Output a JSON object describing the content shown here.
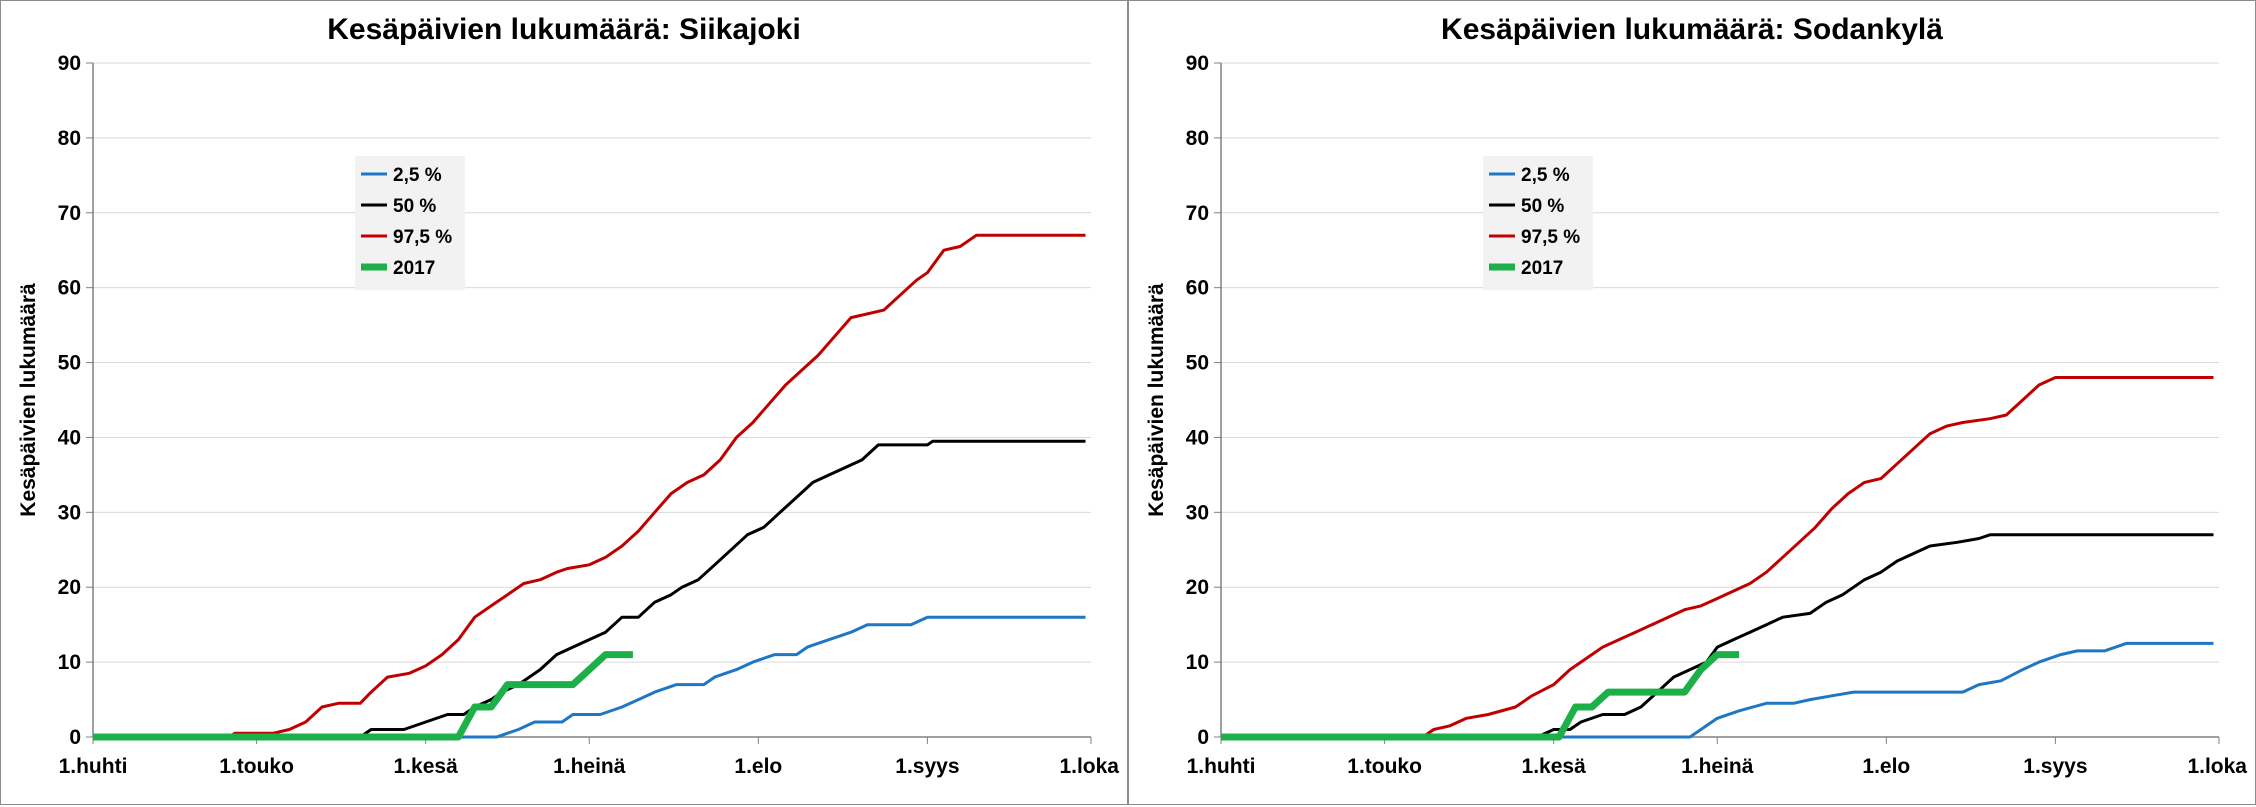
{
  "chart_data": [
    {
      "type": "line",
      "title": "Kesäpäivien lukumäärä: Siikajoki",
      "xlabel": "",
      "ylabel": "Kesäpäivien lukumäärä",
      "x_ticks": [
        "1.huhti",
        "1.touko",
        "1.kesä",
        "1.heinä",
        "1.elo",
        "1.syys",
        "1.loka"
      ],
      "x_tick_dates": [
        "04-01",
        "05-01",
        "06-01",
        "07-01",
        "08-01",
        "09-01",
        "10-01"
      ],
      "ylim": [
        0,
        90
      ],
      "yticks": [
        0,
        10,
        20,
        30,
        40,
        50,
        60,
        70,
        80,
        90
      ],
      "grid": true,
      "legend_position": "top-left",
      "series": [
        {
          "name": "2,5 %",
          "color": "#1f77c4",
          "width": 3,
          "points": [
            [
              "04-01",
              0
            ],
            [
              "06-14",
              0
            ],
            [
              "06-18",
              1
            ],
            [
              "06-21",
              2
            ],
            [
              "06-26",
              2
            ],
            [
              "06-28",
              3
            ],
            [
              "07-03",
              3
            ],
            [
              "07-07",
              4
            ],
            [
              "07-10",
              5
            ],
            [
              "07-13",
              6
            ],
            [
              "07-17",
              7
            ],
            [
              "07-22",
              7
            ],
            [
              "07-24",
              8
            ],
            [
              "07-28",
              9
            ],
            [
              "07-31",
              10
            ],
            [
              "08-04",
              11
            ],
            [
              "08-08",
              11
            ],
            [
              "08-10",
              12
            ],
            [
              "08-14",
              13
            ],
            [
              "08-18",
              14
            ],
            [
              "08-21",
              15
            ],
            [
              "08-26",
              15
            ],
            [
              "08-29",
              15
            ],
            [
              "09-01",
              16
            ],
            [
              "09-06",
              16
            ],
            [
              "09-10",
              16
            ],
            [
              "09-30",
              16
            ]
          ]
        },
        {
          "name": "50 %",
          "color": "#000000",
          "width": 3,
          "points": [
            [
              "04-01",
              0
            ],
            [
              "05-20",
              0
            ],
            [
              "05-22",
              1
            ],
            [
              "05-28",
              1
            ],
            [
              "06-01",
              2
            ],
            [
              "06-05",
              3
            ],
            [
              "06-08",
              3
            ],
            [
              "06-10",
              4
            ],
            [
              "06-13",
              5
            ],
            [
              "06-15",
              6
            ],
            [
              "06-18",
              7
            ],
            [
              "06-20",
              8
            ],
            [
              "06-22",
              9
            ],
            [
              "06-25",
              11
            ],
            [
              "06-28",
              12
            ],
            [
              "07-01",
              13
            ],
            [
              "07-04",
              14
            ],
            [
              "07-07",
              16
            ],
            [
              "07-10",
              16
            ],
            [
              "07-13",
              18
            ],
            [
              "07-16",
              19
            ],
            [
              "07-18",
              20
            ],
            [
              "07-21",
              21
            ],
            [
              "07-24",
              23
            ],
            [
              "07-27",
              25
            ],
            [
              "07-30",
              27
            ],
            [
              "08-02",
              28
            ],
            [
              "08-05",
              30
            ],
            [
              "08-08",
              32
            ],
            [
              "08-11",
              34
            ],
            [
              "08-14",
              35
            ],
            [
              "08-17",
              36
            ],
            [
              "08-20",
              37
            ],
            [
              "08-23",
              39
            ],
            [
              "09-01",
              39
            ],
            [
              "09-02",
              39.5
            ],
            [
              "09-30",
              39.5
            ]
          ]
        },
        {
          "name": "97,5 %",
          "color": "#c00000",
          "width": 3,
          "points": [
            [
              "04-01",
              0
            ],
            [
              "04-26",
              0
            ],
            [
              "04-27",
              0.5
            ],
            [
              "05-04",
              0.5
            ],
            [
              "05-07",
              1
            ],
            [
              "05-10",
              2
            ],
            [
              "05-13",
              4
            ],
            [
              "05-16",
              4.5
            ],
            [
              "05-20",
              4.5
            ],
            [
              "05-22",
              6
            ],
            [
              "05-25",
              8
            ],
            [
              "05-29",
              8.5
            ],
            [
              "06-01",
              9.5
            ],
            [
              "06-04",
              11
            ],
            [
              "06-07",
              13
            ],
            [
              "06-10",
              16
            ],
            [
              "06-13",
              17.5
            ],
            [
              "06-16",
              19
            ],
            [
              "06-19",
              20.5
            ],
            [
              "06-22",
              21
            ],
            [
              "06-25",
              22
            ],
            [
              "06-27",
              22.5
            ],
            [
              "07-01",
              23
            ],
            [
              "07-04",
              24
            ],
            [
              "07-07",
              25.5
            ],
            [
              "07-10",
              27.5
            ],
            [
              "07-13",
              30
            ],
            [
              "07-16",
              32.5
            ],
            [
              "07-19",
              34
            ],
            [
              "07-22",
              35
            ],
            [
              "07-25",
              37
            ],
            [
              "07-28",
              40
            ],
            [
              "07-31",
              42
            ],
            [
              "08-03",
              44.5
            ],
            [
              "08-06",
              47
            ],
            [
              "08-09",
              49
            ],
            [
              "08-12",
              51
            ],
            [
              "08-15",
              53.5
            ],
            [
              "08-18",
              56
            ],
            [
              "08-21",
              56.5
            ],
            [
              "08-24",
              57
            ],
            [
              "08-27",
              59
            ],
            [
              "08-30",
              61
            ],
            [
              "09-01",
              62
            ],
            [
              "09-04",
              65
            ],
            [
              "09-07",
              65.5
            ],
            [
              "09-10",
              67
            ],
            [
              "09-30",
              67
            ]
          ]
        },
        {
          "name": "2017",
          "color": "#1db049",
          "width": 7,
          "points": [
            [
              "04-01",
              0
            ],
            [
              "06-07",
              0
            ],
            [
              "06-10",
              4
            ],
            [
              "06-13",
              4
            ],
            [
              "06-16",
              7
            ],
            [
              "06-28",
              7
            ],
            [
              "07-01",
              9
            ],
            [
              "07-04",
              11
            ],
            [
              "07-09",
              11
            ]
          ]
        }
      ]
    },
    {
      "type": "line",
      "title": "Kesäpäivien lukumäärä: Sodankylä",
      "xlabel": "",
      "ylabel": "Kesäpäivien lukumäärä",
      "x_ticks": [
        "1.huhti",
        "1.touko",
        "1.kesä",
        "1.heinä",
        "1.elo",
        "1.syys",
        "1.loka"
      ],
      "x_tick_dates": [
        "04-01",
        "05-01",
        "06-01",
        "07-01",
        "08-01",
        "09-01",
        "10-01"
      ],
      "ylim": [
        0,
        90
      ],
      "yticks": [
        0,
        10,
        20,
        30,
        40,
        50,
        60,
        70,
        80,
        90
      ],
      "grid": true,
      "legend_position": "top-left",
      "series": [
        {
          "name": "2,5 %",
          "color": "#1f77c4",
          "width": 3,
          "points": [
            [
              "04-01",
              0
            ],
            [
              "06-26",
              0
            ],
            [
              "06-28",
              1
            ],
            [
              "07-01",
              2.5
            ],
            [
              "07-05",
              3.5
            ],
            [
              "07-10",
              4.5
            ],
            [
              "07-15",
              4.5
            ],
            [
              "07-18",
              5
            ],
            [
              "07-22",
              5.5
            ],
            [
              "07-26",
              6
            ],
            [
              "08-15",
              6
            ],
            [
              "08-18",
              7
            ],
            [
              "08-22",
              7.5
            ],
            [
              "08-26",
              9
            ],
            [
              "08-29",
              10
            ],
            [
              "09-02",
              11
            ],
            [
              "09-05",
              11.5
            ],
            [
              "09-10",
              11.5
            ],
            [
              "09-14",
              12.5
            ],
            [
              "09-30",
              12.5
            ]
          ]
        },
        {
          "name": "50 %",
          "color": "#000000",
          "width": 3,
          "points": [
            [
              "04-01",
              0
            ],
            [
              "05-29",
              0
            ],
            [
              "06-01",
              1
            ],
            [
              "06-04",
              1
            ],
            [
              "06-06",
              2
            ],
            [
              "06-10",
              3
            ],
            [
              "06-14",
              3
            ],
            [
              "06-17",
              4
            ],
            [
              "06-20",
              6
            ],
            [
              "06-23",
              8
            ],
            [
              "06-26",
              9
            ],
            [
              "06-29",
              10
            ],
            [
              "07-01",
              12
            ],
            [
              "07-04",
              13
            ],
            [
              "07-07",
              14
            ],
            [
              "07-10",
              15
            ],
            [
              "07-13",
              16
            ],
            [
              "07-18",
              16.5
            ],
            [
              "07-21",
              18
            ],
            [
              "07-24",
              19
            ],
            [
              "07-28",
              21
            ],
            [
              "07-31",
              22
            ],
            [
              "08-03",
              23.5
            ],
            [
              "08-06",
              24.5
            ],
            [
              "08-09",
              25.5
            ],
            [
              "08-14",
              26
            ],
            [
              "08-18",
              26.5
            ],
            [
              "08-20",
              27
            ],
            [
              "09-30",
              27
            ]
          ]
        },
        {
          "name": "97,5 %",
          "color": "#c00000",
          "width": 3,
          "points": [
            [
              "04-01",
              0
            ],
            [
              "05-08",
              0
            ],
            [
              "05-10",
              1
            ],
            [
              "05-13",
              1.5
            ],
            [
              "05-16",
              2.5
            ],
            [
              "05-20",
              3
            ],
            [
              "05-25",
              4
            ],
            [
              "05-28",
              5.5
            ],
            [
              "06-01",
              7
            ],
            [
              "06-04",
              9
            ],
            [
              "06-07",
              10.5
            ],
            [
              "06-10",
              12
            ],
            [
              "06-13",
              13
            ],
            [
              "06-16",
              14
            ],
            [
              "06-19",
              15
            ],
            [
              "06-22",
              16
            ],
            [
              "06-25",
              17
            ],
            [
              "06-28",
              17.5
            ],
            [
              "07-01",
              18.5
            ],
            [
              "07-04",
              19.5
            ],
            [
              "07-07",
              20.5
            ],
            [
              "07-10",
              22
            ],
            [
              "07-13",
              24
            ],
            [
              "07-16",
              26
            ],
            [
              "07-19",
              28
            ],
            [
              "07-22",
              30.5
            ],
            [
              "07-25",
              32.5
            ],
            [
              "07-28",
              34
            ],
            [
              "07-31",
              34.5
            ],
            [
              "08-03",
              36.5
            ],
            [
              "08-06",
              38.5
            ],
            [
              "08-09",
              40.5
            ],
            [
              "08-12",
              41.5
            ],
            [
              "08-15",
              42
            ],
            [
              "08-20",
              42.5
            ],
            [
              "08-23",
              43
            ],
            [
              "08-26",
              45
            ],
            [
              "08-29",
              47
            ],
            [
              "09-01",
              48
            ],
            [
              "09-30",
              48
            ]
          ]
        },
        {
          "name": "2017",
          "color": "#1db049",
          "width": 7,
          "points": [
            [
              "04-01",
              0
            ],
            [
              "06-02",
              0
            ],
            [
              "06-05",
              4
            ],
            [
              "06-08",
              4
            ],
            [
              "06-11",
              6
            ],
            [
              "06-25",
              6
            ],
            [
              "06-28",
              9
            ],
            [
              "07-01",
              11
            ],
            [
              "07-05",
              11
            ]
          ]
        }
      ]
    }
  ]
}
